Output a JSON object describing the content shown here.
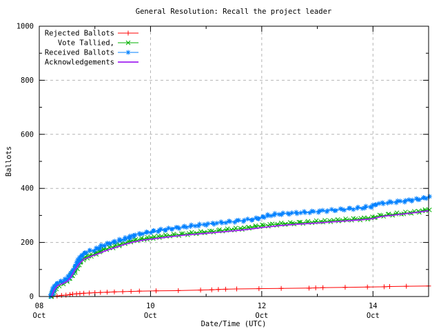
{
  "chart_data": {
    "type": "line",
    "title": "General Resolution: Recall the project leader",
    "xlabel": "Date/Time (UTC)",
    "ylabel": "Ballots",
    "grid": {
      "on": true,
      "color": "#b4b4b4",
      "dash": "4,4"
    },
    "border_color": "#000000",
    "x_axis": {
      "unit": "days since Oct 08 00:00 UTC",
      "range_days": [
        0,
        7
      ],
      "major_ticks": [
        {
          "day": 0,
          "line1": "08",
          "line2": "Oct"
        },
        {
          "day": 2,
          "line1": "10",
          "line2": "Oct"
        },
        {
          "day": 4,
          "line1": "12",
          "line2": "Oct"
        },
        {
          "day": 6,
          "line1": "14",
          "line2": "Oct"
        }
      ],
      "minor_tick_days": [
        1,
        3,
        5,
        7
      ],
      "grid_at_days": [
        2,
        4,
        6
      ]
    },
    "y_axis": {
      "range": [
        0,
        1000
      ],
      "major_ticks": [
        {
          "value": 0,
          "label": "0"
        },
        {
          "value": 200,
          "label": "200"
        },
        {
          "value": 400,
          "label": "400"
        },
        {
          "value": 600,
          "label": "600"
        },
        {
          "value": 800,
          "label": "800"
        },
        {
          "value": 1000,
          "label": "1000"
        }
      ],
      "minor_tick_values": [
        100,
        300,
        500,
        700,
        900
      ],
      "grid_at_values": [
        200,
        400,
        600,
        800
      ]
    },
    "legend_position": "top-left-inside",
    "series": [
      {
        "name": "Rejected Ballots",
        "color": "#ff0000",
        "marker": "plus",
        "dense": false,
        "line_width": 1,
        "points": [
          [
            0.25,
            0
          ],
          [
            0.32,
            2
          ],
          [
            0.4,
            4
          ],
          [
            0.48,
            5
          ],
          [
            0.55,
            7
          ],
          [
            0.6,
            9
          ],
          [
            0.67,
            10
          ],
          [
            0.73,
            11
          ],
          [
            0.8,
            12
          ],
          [
            0.9,
            13
          ],
          [
            1.0,
            14
          ],
          [
            1.1,
            15
          ],
          [
            1.22,
            16
          ],
          [
            1.35,
            17
          ],
          [
            1.5,
            18
          ],
          [
            1.65,
            19
          ],
          [
            1.8,
            20
          ],
          [
            2.1,
            21
          ],
          [
            2.5,
            22
          ],
          [
            2.9,
            24
          ],
          [
            3.1,
            25
          ],
          [
            3.22,
            26
          ],
          [
            3.35,
            27
          ],
          [
            3.55,
            28
          ],
          [
            3.95,
            29
          ],
          [
            4.35,
            30
          ],
          [
            4.85,
            31
          ],
          [
            4.97,
            32
          ],
          [
            5.1,
            33
          ],
          [
            5.5,
            34
          ],
          [
            5.9,
            35
          ],
          [
            6.2,
            36
          ],
          [
            6.3,
            37
          ],
          [
            6.6,
            38
          ],
          [
            7.0,
            39
          ]
        ]
      },
      {
        "name": "   Vote Tallied,",
        "color": "#00b000",
        "marker": "cross",
        "dense": true,
        "line_width": 1,
        "points": [
          [
            0.22,
            0
          ],
          [
            0.25,
            14
          ],
          [
            0.29,
            30
          ],
          [
            0.34,
            42
          ],
          [
            0.42,
            50
          ],
          [
            0.5,
            58
          ],
          [
            0.56,
            70
          ],
          [
            0.62,
            88
          ],
          [
            0.68,
            108
          ],
          [
            0.74,
            128
          ],
          [
            0.82,
            142
          ],
          [
            0.92,
            152
          ],
          [
            1.02,
            160
          ],
          [
            1.14,
            172
          ],
          [
            1.28,
            181
          ],
          [
            1.42,
            190
          ],
          [
            1.56,
            199
          ],
          [
            1.7,
            207
          ],
          [
            1.85,
            212
          ],
          [
            2.0,
            217
          ],
          [
            2.25,
            224
          ],
          [
            2.5,
            229
          ],
          [
            2.8,
            235
          ],
          [
            3.1,
            241
          ],
          [
            3.4,
            247
          ],
          [
            3.7,
            253
          ],
          [
            4.0,
            262
          ],
          [
            4.25,
            267
          ],
          [
            4.55,
            271
          ],
          [
            4.85,
            275
          ],
          [
            5.15,
            279
          ],
          [
            5.45,
            283
          ],
          [
            5.75,
            287
          ],
          [
            5.98,
            291
          ],
          [
            6.1,
            298
          ],
          [
            6.35,
            304
          ],
          [
            6.6,
            309
          ],
          [
            6.85,
            315
          ],
          [
            7.0,
            322
          ]
        ]
      },
      {
        "name": "Received Ballots",
        "color": "#0080ff",
        "marker": "star",
        "dense": true,
        "line_width": 1,
        "points": [
          [
            0.2,
            0
          ],
          [
            0.23,
            12
          ],
          [
            0.26,
            30
          ],
          [
            0.3,
            44
          ],
          [
            0.34,
            52
          ],
          [
            0.4,
            56
          ],
          [
            0.46,
            60
          ],
          [
            0.52,
            68
          ],
          [
            0.56,
            80
          ],
          [
            0.61,
            95
          ],
          [
            0.66,
            115
          ],
          [
            0.72,
            138
          ],
          [
            0.78,
            155
          ],
          [
            0.85,
            165
          ],
          [
            0.93,
            170
          ],
          [
            1.02,
            174
          ],
          [
            1.12,
            186
          ],
          [
            1.22,
            194
          ],
          [
            1.35,
            202
          ],
          [
            1.48,
            210
          ],
          [
            1.6,
            217
          ],
          [
            1.7,
            226
          ],
          [
            1.82,
            232
          ],
          [
            2.0,
            239
          ],
          [
            2.2,
            246
          ],
          [
            2.45,
            253
          ],
          [
            2.7,
            260
          ],
          [
            3.0,
            267
          ],
          [
            3.3,
            274
          ],
          [
            3.6,
            280
          ],
          [
            3.85,
            286
          ],
          [
            4.0,
            292
          ],
          [
            4.12,
            300
          ],
          [
            4.3,
            305
          ],
          [
            4.6,
            309
          ],
          [
            4.9,
            313
          ],
          [
            5.2,
            318
          ],
          [
            5.5,
            323
          ],
          [
            5.8,
            328
          ],
          [
            5.98,
            333
          ],
          [
            6.06,
            342
          ],
          [
            6.3,
            348
          ],
          [
            6.6,
            354
          ],
          [
            6.85,
            361
          ],
          [
            7.0,
            368
          ]
        ]
      },
      {
        "name": "Acknowledgements",
        "color": "#a020f0",
        "marker": "none",
        "dense": false,
        "line_width": 1.8,
        "points": [
          [
            0.22,
            0
          ],
          [
            0.27,
            26
          ],
          [
            0.33,
            40
          ],
          [
            0.42,
            48
          ],
          [
            0.5,
            56
          ],
          [
            0.57,
            72
          ],
          [
            0.64,
            98
          ],
          [
            0.72,
            122
          ],
          [
            0.8,
            138
          ],
          [
            0.92,
            148
          ],
          [
            1.05,
            158
          ],
          [
            1.2,
            170
          ],
          [
            1.35,
            180
          ],
          [
            1.52,
            192
          ],
          [
            1.7,
            202
          ],
          [
            1.85,
            208
          ],
          [
            2.0,
            212
          ],
          [
            2.3,
            220
          ],
          [
            2.6,
            227
          ],
          [
            3.0,
            234
          ],
          [
            3.4,
            241
          ],
          [
            3.7,
            247
          ],
          [
            4.0,
            255
          ],
          [
            4.3,
            262
          ],
          [
            4.6,
            267
          ],
          [
            5.0,
            272
          ],
          [
            5.4,
            278
          ],
          [
            5.8,
            284
          ],
          [
            6.0,
            288
          ],
          [
            6.15,
            296
          ],
          [
            6.4,
            302
          ],
          [
            6.7,
            309
          ],
          [
            7.0,
            317
          ]
        ]
      }
    ]
  }
}
